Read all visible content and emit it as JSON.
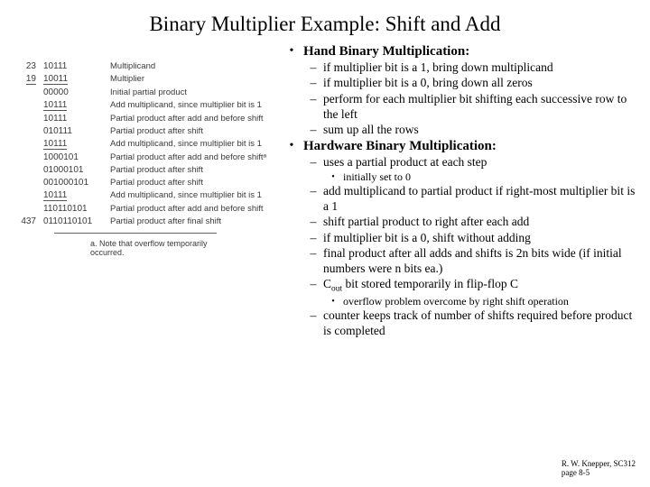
{
  "title": "Binary Multiplier Example:  Shift and Add",
  "left": {
    "rows": [
      {
        "num": "23",
        "bin": "10111",
        "desc": "Multiplicand",
        "under": false
      },
      {
        "num": "19",
        "bin": "10011",
        "desc": "Multiplier",
        "under": true,
        "numUnder": true
      },
      {
        "num": "",
        "bin": "00000",
        "desc": "Initial partial product",
        "under": false
      },
      {
        "num": "",
        "bin": "10111",
        "desc": "Add multiplicand, since multiplier bit is 1",
        "under": true
      },
      {
        "num": "",
        "bin": "10111",
        "desc": "Partial product after add and before shift",
        "under": false
      },
      {
        "num": "",
        "bin": "010111",
        "desc": "Partial product after shift",
        "under": false
      },
      {
        "num": "",
        "bin": "10111",
        "desc": "Add multiplicand, since multiplier bit is 1",
        "under": true
      },
      {
        "num": "",
        "bin": "1000101",
        "desc": "Partial product after add and before shiftᵃ",
        "under": false
      },
      {
        "num": "",
        "bin": "01000101",
        "desc": "Partial product after shift",
        "under": false
      },
      {
        "num": "",
        "bin": "001000101",
        "desc": "Partial product after shift",
        "under": false
      },
      {
        "num": "",
        "bin": "10111",
        "desc": "Add multiplicand, since multiplier bit is 1",
        "under": true
      },
      {
        "num": "",
        "bin": "110110101",
        "desc": "Partial product after add and before shift",
        "under": false
      },
      {
        "num": "437",
        "bin": "0110110101",
        "desc": "Partial product after final shift",
        "under": false
      }
    ],
    "footnote": "a. Note that overflow temporarily occurred."
  },
  "right": {
    "sec1": {
      "title": "Hand Binary Multiplication:",
      "items": [
        "if multiplier bit is a 1, bring down multiplicand",
        "if multiplier bit is a 0, bring down all zeros",
        "perform for each multiplier bit shifting each successive row to the left",
        "sum up all the rows"
      ]
    },
    "sec2": {
      "title": "Hardware Binary Multiplication:",
      "items": [
        {
          "t": "uses a partial product at each step",
          "sub": [
            "initially set to 0"
          ]
        },
        {
          "t": "add multiplicand to partial product if right-most multiplier bit is a 1"
        },
        {
          "t": "shift partial product to right after each add"
        },
        {
          "t": "if multiplier bit is a 0, shift without adding"
        },
        {
          "t": "final product after all adds and shifts is 2n bits wide (if initial numbers were n bits ea.)"
        },
        {
          "t": "Cout bit stored temporarily in flip-flop C",
          "cout": true,
          "sub": [
            "overflow problem overcome by right shift operation"
          ]
        },
        {
          "t": "counter keeps track of number of shifts required before product is completed"
        }
      ]
    }
  },
  "credit": {
    "l1": "R. W. Knepper, SC312",
    "l2": "page 8-5"
  }
}
